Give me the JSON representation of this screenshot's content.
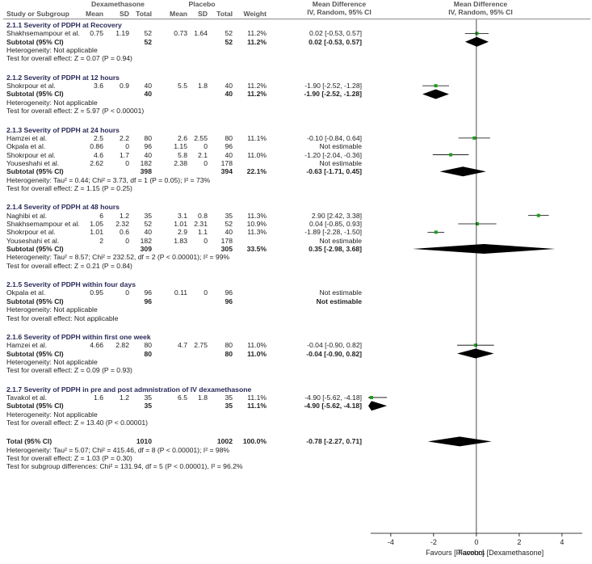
{
  "header": {
    "group1": "Dexamethasone",
    "group2": "Placebo",
    "effect_col": "Mean Difference",
    "effect_sub": "IV, Random, 95% CI",
    "plot_title": "Mean Difference",
    "plot_sub": "IV, Random, 95% CI",
    "study": "Study or Subgroup",
    "mean1": "Mean",
    "sd1": "SD",
    "total1": "Total",
    "mean2": "Mean",
    "sd2": "SD",
    "total2": "Total",
    "weight": "Weight"
  },
  "rows": [
    {
      "kind": "heading",
      "text": "2.1.1 Severity of PDPH at Recovery"
    },
    {
      "kind": "study",
      "name": "Shakhsemampour et al.",
      "m1": "0.75",
      "s1": "1.19",
      "n1": "52",
      "m2": "0.73",
      "s2": "1.64",
      "n2": "52",
      "w": "11.2%",
      "ci": "0.02 [-0.53, 0.57]",
      "md": 0.02,
      "lo": -0.53,
      "hi": 0.57
    },
    {
      "kind": "subtotal",
      "name": "Subtotal (95% CI)",
      "n1": "52",
      "n2": "52",
      "w": "11.2%",
      "ci": "0.02 [-0.53, 0.57]",
      "md": 0.02,
      "lo": -0.53,
      "hi": 0.57
    },
    {
      "kind": "note",
      "text": "Heterogeneity: Not applicable"
    },
    {
      "kind": "note",
      "text": "Test for overall effect: Z = 0.07 (P = 0.94)"
    },
    {
      "kind": "gap"
    },
    {
      "kind": "heading",
      "text": "2.1.2 Severity of PDPH at 12 hours"
    },
    {
      "kind": "study",
      "name": "Shokrpour et al.",
      "m1": "3.6",
      "s1": "0.9",
      "n1": "40",
      "m2": "5.5",
      "s2": "1.8",
      "n2": "40",
      "w": "11.2%",
      "ci": "-1.90 [-2.52, -1.28]",
      "md": -1.9,
      "lo": -2.52,
      "hi": -1.28
    },
    {
      "kind": "subtotal",
      "name": "Subtotal (95% CI)",
      "n1": "40",
      "n2": "40",
      "w": "11.2%",
      "ci": "-1.90 [-2.52, -1.28]",
      "md": -1.9,
      "lo": -2.52,
      "hi": -1.28
    },
    {
      "kind": "note",
      "text": "Heterogeneity: Not applicable"
    },
    {
      "kind": "note",
      "text": "Test for overall effect: Z = 5.97 (P < 0.00001)"
    },
    {
      "kind": "gap"
    },
    {
      "kind": "heading",
      "text": "2.1.3 Severity of PDPH at 24 hours"
    },
    {
      "kind": "study",
      "name": "Hamzei et al.",
      "m1": "2.5",
      "s1": "2.2",
      "n1": "80",
      "m2": "2.6",
      "s2": "2.55",
      "n2": "80",
      "w": "11.1%",
      "ci": "-0.10 [-0.84, 0.64]",
      "md": -0.1,
      "lo": -0.84,
      "hi": 0.64
    },
    {
      "kind": "study",
      "name": "Okpala et al.",
      "m1": "0.86",
      "s1": "0",
      "n1": "96",
      "m2": "1.15",
      "s2": "0",
      "n2": "96",
      "w": "",
      "ci": "Not estimable"
    },
    {
      "kind": "study",
      "name": "Shokrpour et al.",
      "m1": "4.6",
      "s1": "1.7",
      "n1": "40",
      "m2": "5.8",
      "s2": "2.1",
      "n2": "40",
      "w": "11.0%",
      "ci": "-1.20 [-2.04, -0.36]",
      "md": -1.2,
      "lo": -2.04,
      "hi": -0.36
    },
    {
      "kind": "study",
      "name": "Youseshahi et al.",
      "m1": "2.62",
      "s1": "0",
      "n1": "182",
      "m2": "2.38",
      "s2": "0",
      "n2": "178",
      "w": "",
      "ci": "Not estimable"
    },
    {
      "kind": "subtotal",
      "name": "Subtotal (95% CI)",
      "n1": "398",
      "n2": "394",
      "w": "22.1%",
      "ci": "-0.63 [-1.71, 0.45]",
      "md": -0.63,
      "lo": -1.71,
      "hi": 0.45
    },
    {
      "kind": "note",
      "text": "Heterogeneity: Tau² = 0.44; Chi² = 3.73, df = 1 (P = 0.05); I² = 73%"
    },
    {
      "kind": "note",
      "text": "Test for overall effect: Z = 1.15 (P = 0.25)"
    },
    {
      "kind": "gap"
    },
    {
      "kind": "heading",
      "text": "2.1.4 Severity of PDPH at 48 hours"
    },
    {
      "kind": "study",
      "name": "Naghibi et al.",
      "m1": "6",
      "s1": "1.2",
      "n1": "35",
      "m2": "3.1",
      "s2": "0.8",
      "n2": "35",
      "w": "11.3%",
      "ci": "2.90 [2.42, 3.38]",
      "md": 2.9,
      "lo": 2.42,
      "hi": 3.38
    },
    {
      "kind": "study",
      "name": "Shakhsemampour et al.",
      "m1": "1.05",
      "s1": "2.32",
      "n1": "52",
      "m2": "1.01",
      "s2": "2.31",
      "n2": "52",
      "w": "10.9%",
      "ci": "0.04 [-0.85, 0.93]",
      "md": 0.04,
      "lo": -0.85,
      "hi": 0.93
    },
    {
      "kind": "study",
      "name": "Shokrpour et al.",
      "m1": "1.01",
      "s1": "0.6",
      "n1": "40",
      "m2": "2.9",
      "s2": "1.1",
      "n2": "40",
      "w": "11.3%",
      "ci": "-1.89 [-2.28, -1.50]",
      "md": -1.89,
      "lo": -2.28,
      "hi": -1.5
    },
    {
      "kind": "study",
      "name": "Youseshahi et al.",
      "m1": "2",
      "s1": "0",
      "n1": "182",
      "m2": "1.83",
      "s2": "0",
      "n2": "178",
      "w": "",
      "ci": "Not estimable"
    },
    {
      "kind": "subtotal",
      "name": "Subtotal (95% CI)",
      "n1": "309",
      "n2": "305",
      "w": "33.5%",
      "ci": "0.35 [-2.98, 3.68]",
      "md": 0.35,
      "lo": -2.98,
      "hi": 3.68
    },
    {
      "kind": "note",
      "text": "Heterogeneity: Tau² = 8.57; Chi² = 232.52, df = 2 (P < 0.00001); I² = 99%"
    },
    {
      "kind": "note",
      "text": "Test for overall effect: Z = 0.21 (P = 0.84)"
    },
    {
      "kind": "gap"
    },
    {
      "kind": "heading",
      "text": "2.1.5 Severity of PDPH within four days"
    },
    {
      "kind": "study",
      "name": "Okpala et al.",
      "m1": "0.95",
      "s1": "0",
      "n1": "96",
      "m2": "0.11",
      "s2": "0",
      "n2": "96",
      "w": "",
      "ci": "Not estimable"
    },
    {
      "kind": "subtotal",
      "name": "Subtotal (95% CI)",
      "n1": "96",
      "n2": "96",
      "w": "",
      "ci": "Not estimable"
    },
    {
      "kind": "note",
      "text": "Heterogeneity: Not applicable"
    },
    {
      "kind": "note",
      "text": "Test for overall effect: Not applicable"
    },
    {
      "kind": "gap"
    },
    {
      "kind": "heading",
      "text": "2.1.6 Severity of PDPH within first one week"
    },
    {
      "kind": "study",
      "name": "Hamzei et al.",
      "m1": "4.66",
      "s1": "2.82",
      "n1": "80",
      "m2": "4.7",
      "s2": "2.75",
      "n2": "80",
      "w": "11.0%",
      "ci": "-0.04 [-0.90, 0.82]",
      "md": -0.04,
      "lo": -0.9,
      "hi": 0.82
    },
    {
      "kind": "subtotal",
      "name": "Subtotal (95% CI)",
      "n1": "80",
      "n2": "80",
      "w": "11.0%",
      "ci": "-0.04 [-0.90, 0.82]",
      "md": -0.04,
      "lo": -0.9,
      "hi": 0.82
    },
    {
      "kind": "note",
      "text": "Heterogeneity: Not applicable"
    },
    {
      "kind": "note",
      "text": "Test for overall effect: Z = 0.09 (P = 0.93)"
    },
    {
      "kind": "gap"
    },
    {
      "kind": "heading",
      "text": "2.1.7 Severity of PDPH in pre and post admnistration of IV dexamethasone"
    },
    {
      "kind": "study",
      "name": "Tavakol et al.",
      "m1": "1.6",
      "s1": "1.2",
      "n1": "35",
      "m2": "6.5",
      "s2": "1.8",
      "n2": "35",
      "w": "11.1%",
      "ci": "-4.90 [-5.62, -4.18]",
      "md": -4.9,
      "lo": -5.62,
      "hi": -4.18
    },
    {
      "kind": "subtotal",
      "name": "Subtotal (95% CI)",
      "n1": "35",
      "n2": "35",
      "w": "11.1%",
      "ci": "-4.90 [-5.62, -4.18]",
      "md": -4.9,
      "lo": -5.62,
      "hi": -4.18
    },
    {
      "kind": "note",
      "text": "Heterogeneity: Not applicable"
    },
    {
      "kind": "note",
      "text": "Test for overall effect: Z = 13.40 (P < 0.00001)"
    },
    {
      "kind": "gap"
    },
    {
      "kind": "total",
      "name": "Total (95% CI)",
      "n1": "1010",
      "n2": "1002",
      "w": "100.0%",
      "ci": "-0.78 [-2.27, 0.71]",
      "md": -0.78,
      "lo": -2.27,
      "hi": 0.71
    },
    {
      "kind": "note",
      "text": "Heterogeneity: Tau² = 5.07; Chi² = 415.46, df = 8 (P < 0.00001); I² = 98%"
    },
    {
      "kind": "note",
      "text": "Test for overall effect: Z = 1.03 (P = 0.30)"
    },
    {
      "kind": "note",
      "text": "Test for subgroup differences: Chi² = 131.94, df = 5 (P < 0.00001), I² = 96.2%"
    }
  ],
  "axis": {
    "ticks": [
      "-4",
      "-2",
      "0",
      "2",
      "4"
    ],
    "favours_left": "Favours [Placebo]",
    "favours_right": "Favours [Dexamethasone]"
  },
  "chart_data": {
    "type": "scatter",
    "xlim": [
      -4.9,
      5.4
    ],
    "ticks": [
      -4,
      -2,
      0,
      2,
      4
    ],
    "x_reference": 0,
    "marker_color": "#1e9e1e",
    "diamond_color": "#000000"
  }
}
